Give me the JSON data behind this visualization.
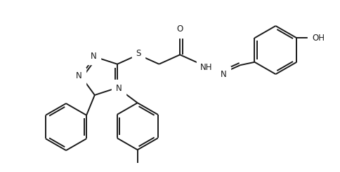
{
  "background_color": "#ffffff",
  "line_color": "#1a1a1a",
  "line_width": 1.4,
  "font_size": 8.5,
  "figsize": [
    4.84,
    2.46
  ],
  "dpi": 100,
  "xlim": [
    0,
    10
  ],
  "ylim": [
    0,
    5.1
  ]
}
